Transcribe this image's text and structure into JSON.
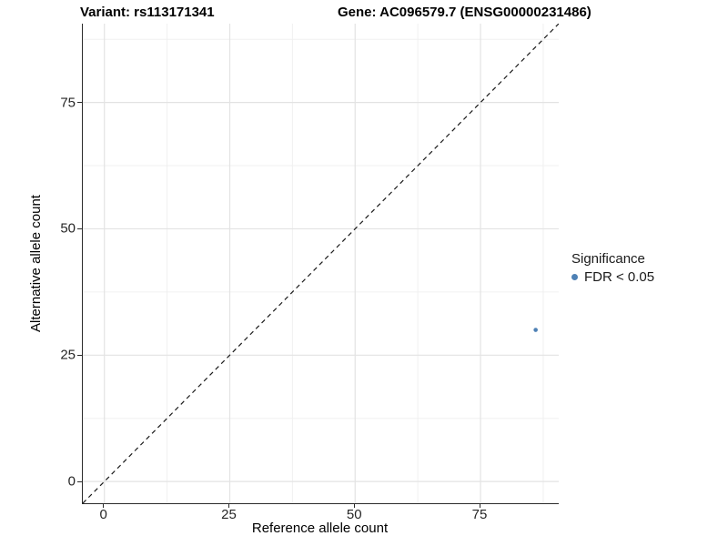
{
  "figure": {
    "title_variant": "Variant: rs113171341",
    "title_gene": "Gene: AC096579.7 (ENSG00000231486)"
  },
  "chart_data": {
    "type": "scatter",
    "title": "Variant: rs113171341  |  Gene: AC096579.7 (ENSG00000231486)",
    "xlabel": "Reference allele count",
    "ylabel": "Alternative allele count",
    "xlim": [
      -4.3,
      90.6
    ],
    "ylim": [
      -4.3,
      90.6
    ],
    "xticks": [
      0,
      25,
      50,
      75
    ],
    "yticks": [
      0,
      25,
      50,
      75
    ],
    "minor_gridlines": [
      12.5,
      37.5,
      62.5,
      87.5
    ],
    "grid": "major+minor",
    "colors": {
      "point": "#4E81B5",
      "major_grid": "#e3e3e3",
      "minor_grid": "#f0f0f0",
      "reference_line": "#1a1a1a",
      "axis_line": "#2b2b2b"
    },
    "series": [
      {
        "name": "FDR < 0.05",
        "color": "#4E81B5",
        "points": [
          {
            "x": 86,
            "y": 30
          }
        ]
      }
    ],
    "reference_line": {
      "slope": 1,
      "intercept": 0,
      "style": "dashed"
    },
    "legend": {
      "title": "Significance",
      "position": "right",
      "items": [
        {
          "label": "FDR < 0.05",
          "color": "#4E81B5"
        }
      ]
    }
  }
}
